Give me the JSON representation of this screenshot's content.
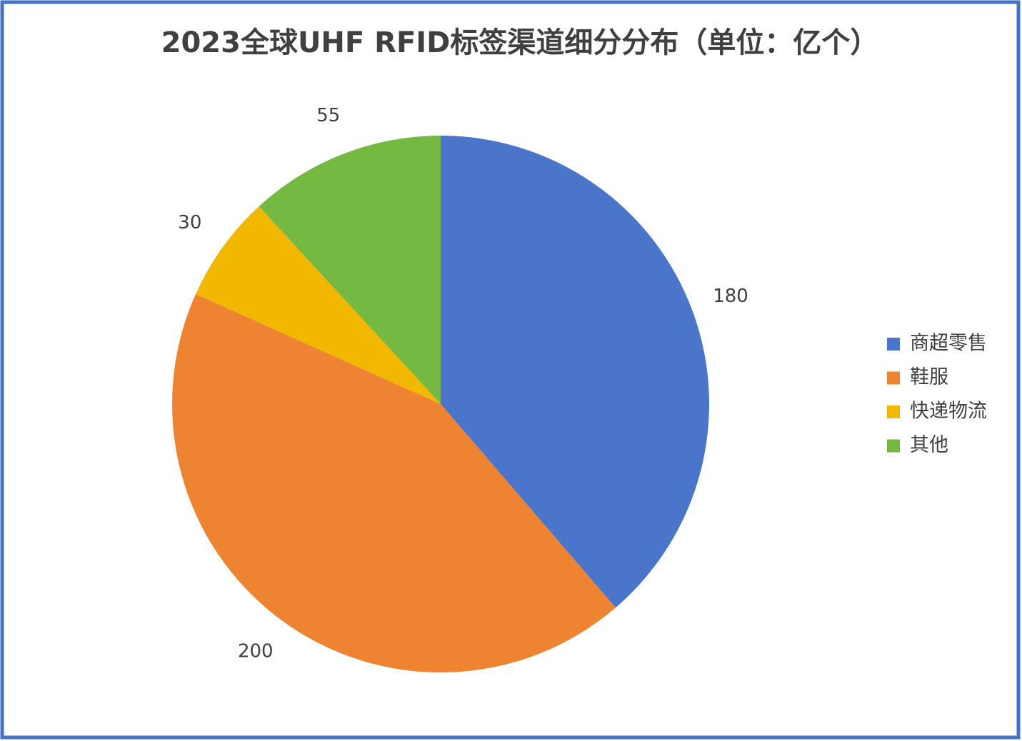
{
  "chart_data": {
    "type": "pie",
    "title": "2023全球UHF RFID标签渠道细分分布（单位：亿个）",
    "categories": [
      "商超零售",
      "鞋服",
      "快递物流",
      "其他"
    ],
    "values": [
      180,
      200,
      30,
      55
    ],
    "colors": [
      "#4a75ca",
      "#ee8432",
      "#f2b800",
      "#76b942"
    ],
    "legend": "right"
  }
}
